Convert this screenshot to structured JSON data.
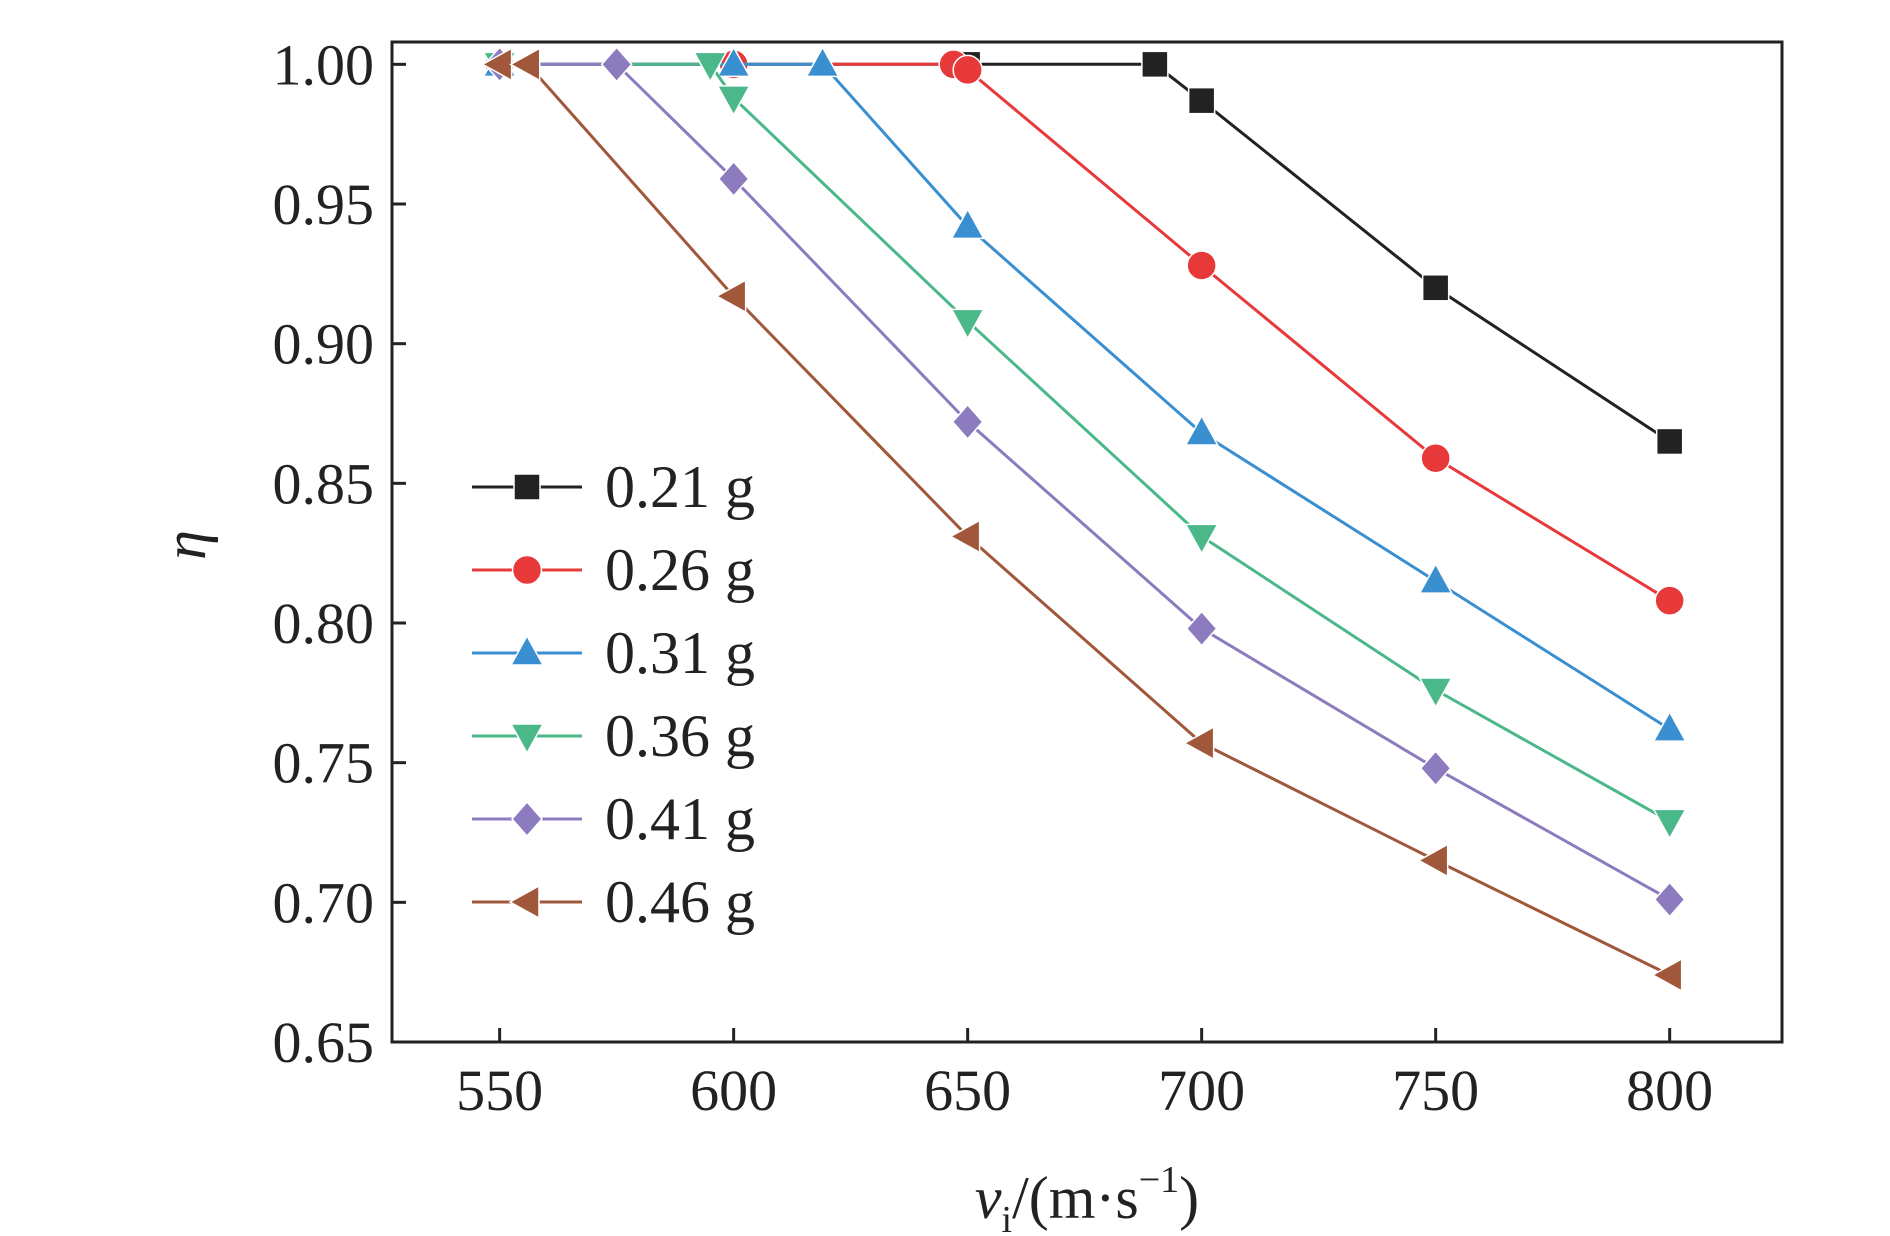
{
  "chart_data": {
    "type": "line",
    "xlabel": {
      "var": "v",
      "sub": "i",
      "unit": "/(m·s",
      "sup": "−1",
      "close": ")"
    },
    "ylabel": "η",
    "xlim": [
      527,
      824
    ],
    "ylim": [
      0.65,
      1.008
    ],
    "xticks": [
      550,
      600,
      650,
      700,
      750,
      800
    ],
    "xtick_labels": [
      "550",
      "600",
      "650",
      "700",
      "750",
      "800"
    ],
    "yticks": [
      0.65,
      0.7,
      0.75,
      0.8,
      0.85,
      0.9,
      0.95,
      1.0
    ],
    "ytick_labels": [
      "0.65",
      "0.70",
      "0.75",
      "0.80",
      "0.85",
      "0.90",
      "0.95",
      "1.00"
    ],
    "grid": false,
    "legend_position": "center-left",
    "series": [
      {
        "name": "0.21 g",
        "color": "#222222",
        "marker": "square",
        "x": [
          550,
          650,
          690,
          700,
          750,
          800
        ],
        "y": [
          1.0,
          1.0,
          1.0,
          0.987,
          0.92,
          0.865
        ]
      },
      {
        "name": "0.26 g",
        "color": "#e8393a",
        "marker": "circle",
        "x": [
          550,
          600,
          647,
          650,
          700,
          750,
          800
        ],
        "y": [
          1.0,
          1.0,
          1.0,
          0.998,
          0.928,
          0.859,
          0.808
        ]
      },
      {
        "name": "0.31 g",
        "color": "#3a8fd0",
        "marker": "triangle-up",
        "x": [
          550,
          600,
          619,
          650,
          700,
          750,
          800
        ],
        "y": [
          1.0,
          1.0,
          1.0,
          0.942,
          0.868,
          0.815,
          0.762
        ]
      },
      {
        "name": "0.36 g",
        "color": "#4bb88a",
        "marker": "triangle-down",
        "x": [
          550,
          595,
          600,
          650,
          700,
          750,
          800
        ],
        "y": [
          1.0,
          1.0,
          0.988,
          0.908,
          0.831,
          0.776,
          0.729
        ]
      },
      {
        "name": "0.41 g",
        "color": "#8c7bbf",
        "marker": "diamond",
        "x": [
          550,
          575,
          600,
          650,
          700,
          750,
          800
        ],
        "y": [
          1.0,
          1.0,
          0.959,
          0.872,
          0.798,
          0.748,
          0.701
        ]
      },
      {
        "name": "0.46 g",
        "color": "#a0573a",
        "marker": "triangle-left",
        "x": [
          550,
          556,
          600,
          650,
          700,
          750,
          800
        ],
        "y": [
          1.0,
          1.0,
          0.917,
          0.831,
          0.757,
          0.715,
          0.674
        ]
      }
    ]
  }
}
